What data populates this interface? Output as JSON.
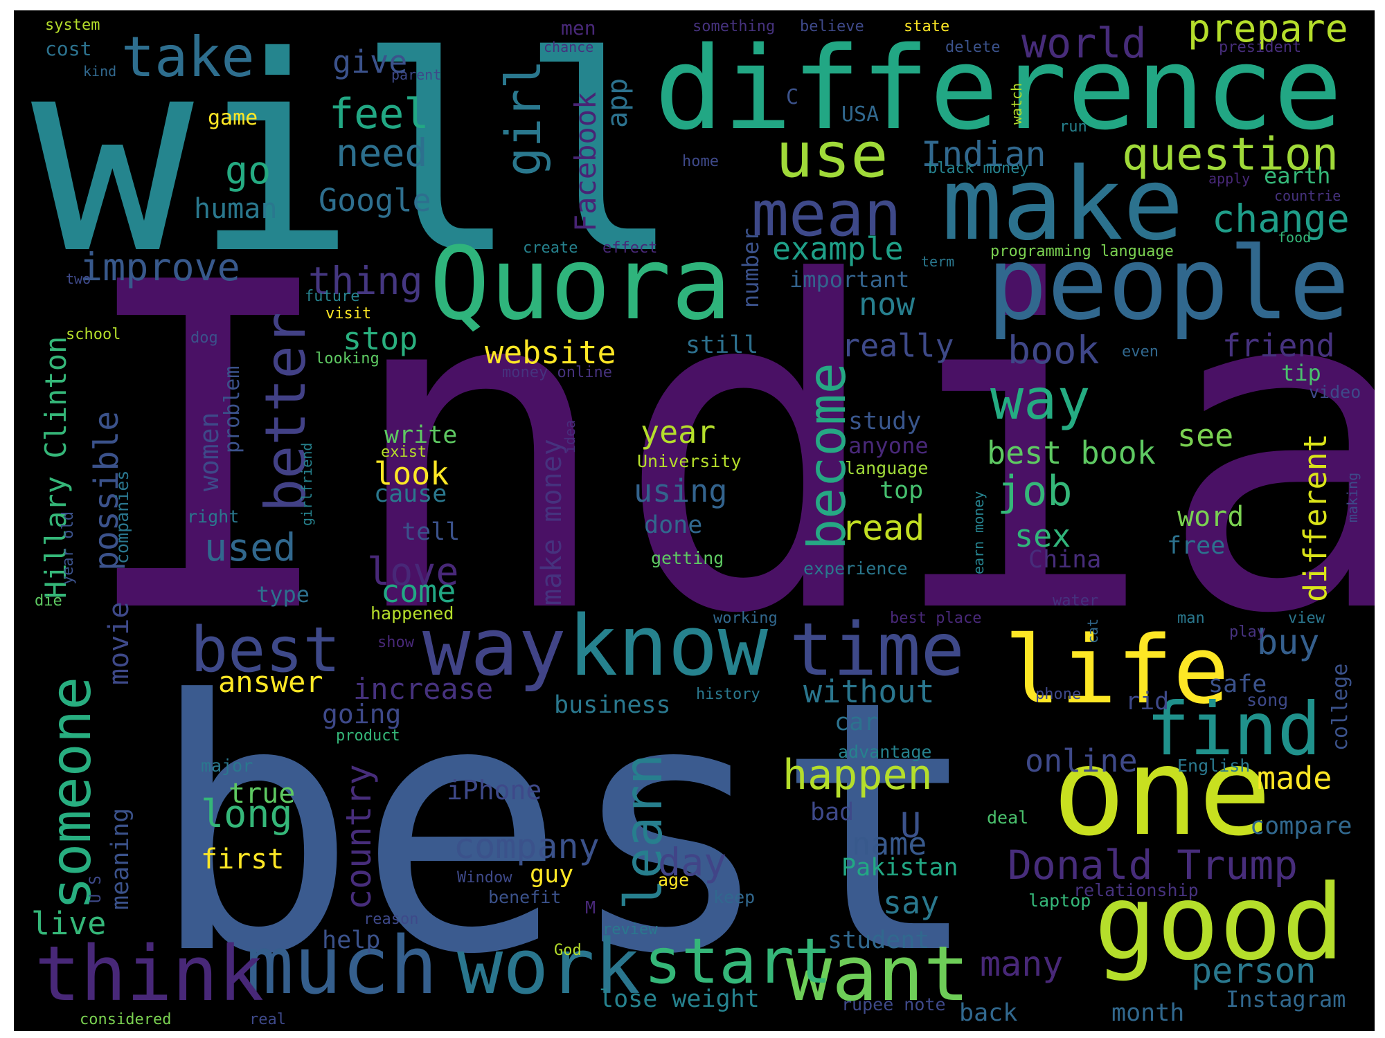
{
  "wordcloud": {
    "background": "#000000",
    "colormap": [
      "#440154",
      "#482878",
      "#3e4989",
      "#31688e",
      "#26828e",
      "#1f9e89",
      "#35b779",
      "#6ece58",
      "#b5de2b",
      "#fde725"
    ],
    "words": [
      {
        "text": "India",
        "color": "#4a1165"
      },
      {
        "text": "best",
        "color": "#3b5b8f"
      },
      {
        "text": "will",
        "color": "#25858e"
      },
      {
        "text": "difference",
        "color": "#22a784"
      },
      {
        "text": "Quora",
        "color": "#2fb47c"
      },
      {
        "text": "people",
        "color": "#31688e"
      },
      {
        "text": "make",
        "color": "#2c728e"
      },
      {
        "text": "good",
        "color": "#b5de2b"
      },
      {
        "text": "one",
        "color": "#c8e020"
      },
      {
        "text": "life",
        "color": "#fde725"
      },
      {
        "text": "know",
        "color": "#26828e"
      },
      {
        "text": "time",
        "color": "#3e4989"
      },
      {
        "text": "way",
        "color": "#414487"
      },
      {
        "text": "much",
        "color": "#355f8d"
      },
      {
        "text": "think",
        "color": "#482878"
      },
      {
        "text": "work",
        "color": "#2a768e"
      },
      {
        "text": "want",
        "color": "#6ece58"
      },
      {
        "text": "start",
        "color": "#35b779"
      },
      {
        "text": "find",
        "color": "#20928c"
      },
      {
        "text": "mean",
        "color": "#3e4989"
      },
      {
        "text": "use",
        "color": "#a0da39"
      },
      {
        "text": "take",
        "color": "#2e6e8e"
      },
      {
        "text": "girl",
        "color": "#2a788e"
      },
      {
        "text": "better",
        "color": "#424186"
      },
      {
        "text": "become",
        "color": "#26a884"
      },
      {
        "text": "learn",
        "color": "#277f8e"
      },
      {
        "text": "someone",
        "color": "#28ae80"
      },
      {
        "text": "world",
        "color": "#472c7a"
      },
      {
        "text": "prepare",
        "color": "#b5de2b"
      },
      {
        "text": "question",
        "color": "#a0da39"
      },
      {
        "text": "change",
        "color": "#1f9e89"
      },
      {
        "text": "Indian",
        "color": "#31688e"
      },
      {
        "text": "feel",
        "color": "#22a884"
      },
      {
        "text": "need",
        "color": "#2d708e"
      },
      {
        "text": "give",
        "color": "#3b528b"
      },
      {
        "text": "go",
        "color": "#25ab82"
      },
      {
        "text": "Google",
        "color": "#2e6f8e"
      },
      {
        "text": "human",
        "color": "#2a788e"
      },
      {
        "text": "improve",
        "color": "#38598c"
      },
      {
        "text": "thing",
        "color": "#453781"
      },
      {
        "text": "website",
        "color": "#fde725"
      },
      {
        "text": "stop",
        "color": "#2ab07f"
      },
      {
        "text": "example",
        "color": "#1fa088"
      },
      {
        "text": "Facebook",
        "color": "#482475"
      },
      {
        "text": "app",
        "color": "#2c728e"
      },
      {
        "text": "number",
        "color": "#3b528b"
      },
      {
        "text": "way",
        "color": "#25ac82"
      },
      {
        "text": "book",
        "color": "#3f4788"
      },
      {
        "text": "friend",
        "color": "#46327e"
      },
      {
        "text": "really",
        "color": "#3e4a89"
      },
      {
        "text": "now",
        "color": "#277f8e"
      },
      {
        "text": "still",
        "color": "#2d708e"
      },
      {
        "text": "important",
        "color": "#33638d"
      },
      {
        "text": "best book",
        "color": "#5ec962"
      },
      {
        "text": "see",
        "color": "#7ad151"
      },
      {
        "text": "job",
        "color": "#35b779"
      },
      {
        "text": "year",
        "color": "#b5de2b"
      },
      {
        "text": "using",
        "color": "#33638d"
      },
      {
        "text": "possible",
        "color": "#3b528b"
      },
      {
        "text": "Hillary Clinton",
        "color": "#35b779"
      },
      {
        "text": "used",
        "color": "#31688e"
      },
      {
        "text": "love",
        "color": "#482878"
      },
      {
        "text": "look",
        "color": "#fde725"
      },
      {
        "text": "write",
        "color": "#5ec962"
      },
      {
        "text": "cause",
        "color": "#2a788e"
      },
      {
        "text": "women",
        "color": "#3e4989"
      },
      {
        "text": "problem",
        "color": "#3b528b"
      },
      {
        "text": "make money",
        "color": "#46327e"
      },
      {
        "text": "read",
        "color": "#c2df23"
      },
      {
        "text": "sex",
        "color": "#31b57b"
      },
      {
        "text": "China",
        "color": "#472d7b"
      },
      {
        "text": "different",
        "color": "#dae319"
      },
      {
        "text": "word",
        "color": "#7ad151"
      },
      {
        "text": "free",
        "color": "#2c728e"
      },
      {
        "text": "tip",
        "color": "#4ac16d"
      },
      {
        "text": "video",
        "color": "#3e4989"
      },
      {
        "text": "study",
        "color": "#39568c"
      },
      {
        "text": "anyone",
        "color": "#482878"
      },
      {
        "text": "language",
        "color": "#a0da39"
      },
      {
        "text": "top",
        "color": "#46c06f"
      },
      {
        "text": "done",
        "color": "#31688e"
      },
      {
        "text": "getting",
        "color": "#5ec962"
      },
      {
        "text": "experience",
        "color": "#2a788e"
      },
      {
        "text": "tell",
        "color": "#3b528b"
      },
      {
        "text": "come",
        "color": "#22a884"
      },
      {
        "text": "type",
        "color": "#2d708e"
      },
      {
        "text": "happened",
        "color": "#b5de2b"
      },
      {
        "text": "best",
        "color": "#3e4989"
      },
      {
        "text": "answer",
        "color": "#fde725"
      },
      {
        "text": "increase",
        "color": "#46327e"
      },
      {
        "text": "going",
        "color": "#3e4989"
      },
      {
        "text": "business",
        "color": "#2a788e"
      },
      {
        "text": "without",
        "color": "#2a768e"
      },
      {
        "text": "car",
        "color": "#2c728e"
      },
      {
        "text": "buy",
        "color": "#355f8d"
      },
      {
        "text": "safe",
        "color": "#3b528b"
      },
      {
        "text": "college",
        "color": "#3b528b"
      },
      {
        "text": "rid",
        "color": "#3e4989"
      },
      {
        "text": "song",
        "color": "#3e4989"
      },
      {
        "text": "movie",
        "color": "#3e4989"
      },
      {
        "text": "meaning",
        "color": "#3b528b"
      },
      {
        "text": "long",
        "color": "#35b779"
      },
      {
        "text": "true",
        "color": "#5ec962"
      },
      {
        "text": "first",
        "color": "#fde725"
      },
      {
        "text": "major",
        "color": "#2a788e"
      },
      {
        "text": "country",
        "color": "#472d7b"
      },
      {
        "text": "iPhone",
        "color": "#3e4989"
      },
      {
        "text": "company",
        "color": "#3b528b"
      },
      {
        "text": "day",
        "color": "#414487"
      },
      {
        "text": "guy",
        "color": "#fde725"
      },
      {
        "text": "happen",
        "color": "#b5de2b"
      },
      {
        "text": "online",
        "color": "#3e4989"
      },
      {
        "text": "U",
        "color": "#3b528b"
      },
      {
        "text": "name",
        "color": "#38598c"
      },
      {
        "text": "Donald Trump",
        "color": "#472d7b"
      },
      {
        "text": "made",
        "color": "#fde725"
      },
      {
        "text": "compare",
        "color": "#31688e"
      },
      {
        "text": "English",
        "color": "#2a788e"
      },
      {
        "text": "advantage",
        "color": "#26828e"
      },
      {
        "text": "bad",
        "color": "#3e4989"
      },
      {
        "text": "deal",
        "color": "#4ac16d"
      },
      {
        "text": "Pakistan",
        "color": "#22a884"
      },
      {
        "text": "say",
        "color": "#2a788e"
      },
      {
        "text": "student",
        "color": "#31688e"
      },
      {
        "text": "person",
        "color": "#2a788e"
      },
      {
        "text": "many",
        "color": "#482878"
      },
      {
        "text": "back",
        "color": "#31688e"
      },
      {
        "text": "month",
        "color": "#31688e"
      },
      {
        "text": "Instagram",
        "color": "#31688e"
      },
      {
        "text": "lose weight",
        "color": "#26828e"
      },
      {
        "text": "rupee note",
        "color": "#3e4989"
      },
      {
        "text": "relationship",
        "color": "#46327e"
      },
      {
        "text": "laptop",
        "color": "#35b779"
      },
      {
        "text": "live",
        "color": "#35b779"
      },
      {
        "text": "help",
        "color": "#3b528b"
      },
      {
        "text": "reason",
        "color": "#3e4989"
      },
      {
        "text": "God",
        "color": "#b5de2b"
      },
      {
        "text": "review",
        "color": "#2a788e"
      },
      {
        "text": "keep",
        "color": "#31688e"
      },
      {
        "text": "benefit",
        "color": "#3b528b"
      },
      {
        "text": "age",
        "color": "#fde725"
      },
      {
        "text": "M",
        "color": "#482878"
      },
      {
        "text": "Window",
        "color": "#3e4989"
      },
      {
        "text": "considered",
        "color": "#7ad151"
      },
      {
        "text": "real",
        "color": "#3e4989"
      },
      {
        "text": "U S",
        "color": "#3e4989"
      },
      {
        "text": "die",
        "color": "#5ec962"
      },
      {
        "text": "year old",
        "color": "#3b528b"
      },
      {
        "text": "right",
        "color": "#2a788e"
      },
      {
        "text": "companies",
        "color": "#2a768e"
      },
      {
        "text": "girlfriend",
        "color": "#26828e"
      },
      {
        "text": "exist",
        "color": "#b5de2b"
      },
      {
        "text": "idea",
        "color": "#472d7b"
      },
      {
        "text": "University",
        "color": "#b5de2b"
      },
      {
        "text": "earn money",
        "color": "#26828e"
      },
      {
        "text": "making",
        "color": "#3e4989"
      },
      {
        "text": "water",
        "color": "#46327e"
      },
      {
        "text": "best place",
        "color": "#482878"
      },
      {
        "text": "cat",
        "color": "#31688e"
      },
      {
        "text": "man",
        "color": "#2a788e"
      },
      {
        "text": "view",
        "color": "#2a768e"
      },
      {
        "text": "play",
        "color": "#46327e"
      },
      {
        "text": "working",
        "color": "#31688e"
      },
      {
        "text": "show",
        "color": "#482878"
      },
      {
        "text": "history",
        "color": "#2a788e"
      },
      {
        "text": "phone",
        "color": "#3e4989"
      },
      {
        "text": "product",
        "color": "#35b779"
      },
      {
        "text": "system",
        "color": "#b5de2b"
      },
      {
        "text": "cost",
        "color": "#2c728e"
      },
      {
        "text": "kind",
        "color": "#31688e"
      },
      {
        "text": "men",
        "color": "#482878"
      },
      {
        "text": "chance",
        "color": "#46327e"
      },
      {
        "text": "something",
        "color": "#46327e"
      },
      {
        "text": "believe",
        "color": "#3e4989"
      },
      {
        "text": "state",
        "color": "#fde725"
      },
      {
        "text": "delete",
        "color": "#3b528b"
      },
      {
        "text": "president",
        "color": "#472d7b"
      },
      {
        "text": "parent",
        "color": "#3e4989"
      },
      {
        "text": "game",
        "color": "#fde725"
      },
      {
        "text": "C",
        "color": "#3b528b"
      },
      {
        "text": "USA",
        "color": "#31688e"
      },
      {
        "text": "watch",
        "color": "#b5de2b"
      },
      {
        "text": "run",
        "color": "#26828e"
      },
      {
        "text": "home",
        "color": "#3e4989"
      },
      {
        "text": "black money",
        "color": "#26828e"
      },
      {
        "text": "apply",
        "color": "#482878"
      },
      {
        "text": "earth",
        "color": "#35b779"
      },
      {
        "text": "countrie",
        "color": "#46327e"
      },
      {
        "text": "create",
        "color": "#26828e"
      },
      {
        "text": "effect",
        "color": "#482878"
      },
      {
        "text": "food",
        "color": "#35b779"
      },
      {
        "text": "programming language",
        "color": "#7ad151"
      },
      {
        "text": "term",
        "color": "#2a788e"
      },
      {
        "text": "two",
        "color": "#3e4989"
      },
      {
        "text": "future",
        "color": "#26828e"
      },
      {
        "text": "visit",
        "color": "#fde725"
      },
      {
        "text": "school",
        "color": "#b5de2b"
      },
      {
        "text": "dog",
        "color": "#3b528b"
      },
      {
        "text": "looking",
        "color": "#5ec962"
      },
      {
        "text": "money online",
        "color": "#46327e"
      },
      {
        "text": "even",
        "color": "#31688e"
      }
    ]
  }
}
